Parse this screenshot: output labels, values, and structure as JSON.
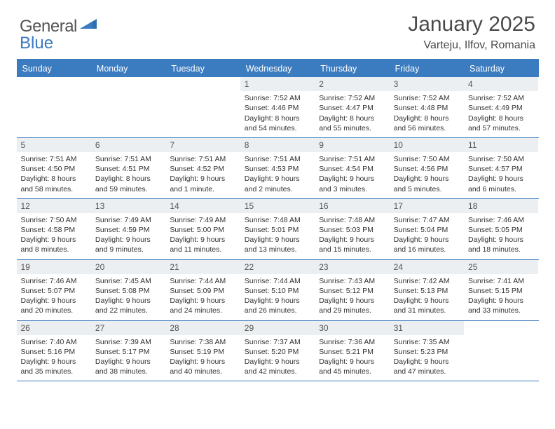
{
  "brand": {
    "part1": "General",
    "part2": "Blue"
  },
  "title": "January 2025",
  "location": "Varteju, Ilfov, Romania",
  "colors": {
    "accent": "#3b7bbf",
    "weekday_bg": "#3b7bbf",
    "weekday_text": "#ffffff",
    "daynum_bg": "#eceff1",
    "text": "#333333",
    "background": "#ffffff"
  },
  "weekdays": [
    "Sunday",
    "Monday",
    "Tuesday",
    "Wednesday",
    "Thursday",
    "Friday",
    "Saturday"
  ],
  "weeks": [
    [
      {
        "empty": true
      },
      {
        "empty": true
      },
      {
        "empty": true
      },
      {
        "day": "1",
        "sunrise": "7:52 AM",
        "sunset": "4:46 PM",
        "daylight": "8 hours and 54 minutes."
      },
      {
        "day": "2",
        "sunrise": "7:52 AM",
        "sunset": "4:47 PM",
        "daylight": "8 hours and 55 minutes."
      },
      {
        "day": "3",
        "sunrise": "7:52 AM",
        "sunset": "4:48 PM",
        "daylight": "8 hours and 56 minutes."
      },
      {
        "day": "4",
        "sunrise": "7:52 AM",
        "sunset": "4:49 PM",
        "daylight": "8 hours and 57 minutes."
      }
    ],
    [
      {
        "day": "5",
        "sunrise": "7:51 AM",
        "sunset": "4:50 PM",
        "daylight": "8 hours and 58 minutes."
      },
      {
        "day": "6",
        "sunrise": "7:51 AM",
        "sunset": "4:51 PM",
        "daylight": "8 hours and 59 minutes."
      },
      {
        "day": "7",
        "sunrise": "7:51 AM",
        "sunset": "4:52 PM",
        "daylight": "9 hours and 1 minute."
      },
      {
        "day": "8",
        "sunrise": "7:51 AM",
        "sunset": "4:53 PM",
        "daylight": "9 hours and 2 minutes."
      },
      {
        "day": "9",
        "sunrise": "7:51 AM",
        "sunset": "4:54 PM",
        "daylight": "9 hours and 3 minutes."
      },
      {
        "day": "10",
        "sunrise": "7:50 AM",
        "sunset": "4:56 PM",
        "daylight": "9 hours and 5 minutes."
      },
      {
        "day": "11",
        "sunrise": "7:50 AM",
        "sunset": "4:57 PM",
        "daylight": "9 hours and 6 minutes."
      }
    ],
    [
      {
        "day": "12",
        "sunrise": "7:50 AM",
        "sunset": "4:58 PM",
        "daylight": "9 hours and 8 minutes."
      },
      {
        "day": "13",
        "sunrise": "7:49 AM",
        "sunset": "4:59 PM",
        "daylight": "9 hours and 9 minutes."
      },
      {
        "day": "14",
        "sunrise": "7:49 AM",
        "sunset": "5:00 PM",
        "daylight": "9 hours and 11 minutes."
      },
      {
        "day": "15",
        "sunrise": "7:48 AM",
        "sunset": "5:01 PM",
        "daylight": "9 hours and 13 minutes."
      },
      {
        "day": "16",
        "sunrise": "7:48 AM",
        "sunset": "5:03 PM",
        "daylight": "9 hours and 15 minutes."
      },
      {
        "day": "17",
        "sunrise": "7:47 AM",
        "sunset": "5:04 PM",
        "daylight": "9 hours and 16 minutes."
      },
      {
        "day": "18",
        "sunrise": "7:46 AM",
        "sunset": "5:05 PM",
        "daylight": "9 hours and 18 minutes."
      }
    ],
    [
      {
        "day": "19",
        "sunrise": "7:46 AM",
        "sunset": "5:07 PM",
        "daylight": "9 hours and 20 minutes."
      },
      {
        "day": "20",
        "sunrise": "7:45 AM",
        "sunset": "5:08 PM",
        "daylight": "9 hours and 22 minutes."
      },
      {
        "day": "21",
        "sunrise": "7:44 AM",
        "sunset": "5:09 PM",
        "daylight": "9 hours and 24 minutes."
      },
      {
        "day": "22",
        "sunrise": "7:44 AM",
        "sunset": "5:10 PM",
        "daylight": "9 hours and 26 minutes."
      },
      {
        "day": "23",
        "sunrise": "7:43 AM",
        "sunset": "5:12 PM",
        "daylight": "9 hours and 29 minutes."
      },
      {
        "day": "24",
        "sunrise": "7:42 AM",
        "sunset": "5:13 PM",
        "daylight": "9 hours and 31 minutes."
      },
      {
        "day": "25",
        "sunrise": "7:41 AM",
        "sunset": "5:15 PM",
        "daylight": "9 hours and 33 minutes."
      }
    ],
    [
      {
        "day": "26",
        "sunrise": "7:40 AM",
        "sunset": "5:16 PM",
        "daylight": "9 hours and 35 minutes."
      },
      {
        "day": "27",
        "sunrise": "7:39 AM",
        "sunset": "5:17 PM",
        "daylight": "9 hours and 38 minutes."
      },
      {
        "day": "28",
        "sunrise": "7:38 AM",
        "sunset": "5:19 PM",
        "daylight": "9 hours and 40 minutes."
      },
      {
        "day": "29",
        "sunrise": "7:37 AM",
        "sunset": "5:20 PM",
        "daylight": "9 hours and 42 minutes."
      },
      {
        "day": "30",
        "sunrise": "7:36 AM",
        "sunset": "5:21 PM",
        "daylight": "9 hours and 45 minutes."
      },
      {
        "day": "31",
        "sunrise": "7:35 AM",
        "sunset": "5:23 PM",
        "daylight": "9 hours and 47 minutes."
      },
      {
        "empty": true
      }
    ]
  ],
  "labels": {
    "sunrise": "Sunrise:",
    "sunset": "Sunset:",
    "daylight": "Daylight:"
  }
}
